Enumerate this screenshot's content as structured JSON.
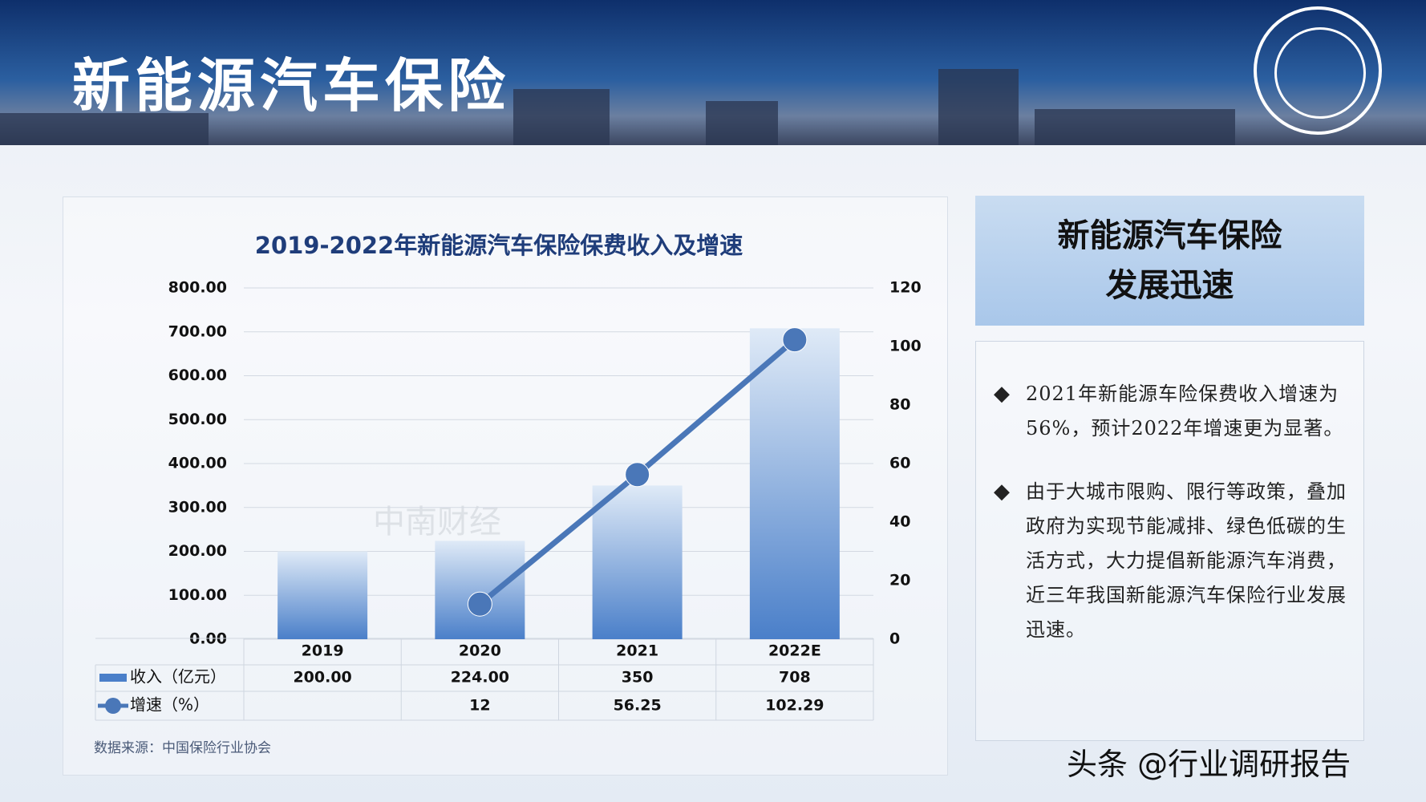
{
  "header": {
    "title": "新能源汽车保险"
  },
  "chart_data": {
    "type": "bar-line",
    "title": "2019-2022年新能源汽车保险保费收入及增速",
    "categories": [
      "2019",
      "2020",
      "2021",
      "2022E"
    ],
    "series": [
      {
        "name": "收入（亿元）",
        "type": "bar",
        "color": "#4a7fc9",
        "values": [
          200,
          224,
          350,
          708
        ],
        "value_labels": [
          "200.00",
          "224.00",
          "350",
          "708"
        ]
      },
      {
        "name": "增速（%）",
        "type": "line",
        "axis": "y2",
        "color": "#4a77b8",
        "values": [
          null,
          12,
          56.25,
          102.29
        ]
      }
    ],
    "ylim": [
      0,
      800
    ],
    "yticks": [
      {
        "value": 0,
        "label": "0.00"
      },
      {
        "value": 100,
        "label": "100.00"
      },
      {
        "value": 200,
        "label": "200.00"
      },
      {
        "value": 300,
        "label": "300.00"
      },
      {
        "value": 400,
        "label": "400.00"
      },
      {
        "value": 500,
        "label": "500.00"
      },
      {
        "value": 600,
        "label": "600.00"
      },
      {
        "value": 700,
        "label": "700.00"
      },
      {
        "value": 800,
        "label": "800.00"
      }
    ],
    "y2lim": [
      0,
      120
    ],
    "y2ticks": [
      0,
      20,
      40,
      60,
      80,
      100,
      120
    ],
    "grid": true,
    "watermark": "中南财经",
    "source": "数据来源：中国保险行业协会"
  },
  "side": {
    "title_lines": [
      "新能源汽车保险",
      "发展迅速"
    ],
    "bullets": [
      "2021年新能源车险保费收入增速为56%，预计2022年增速更为显著。",
      "由于大城市限购、限行等政策，叠加政府为实现节能减排、绿色低碳的生活方式，大力提倡新能源汽车消费，近三年我国新能源汽车保险行业发展迅速。"
    ]
  },
  "footer": {
    "credit": "头条 @行业调研报告"
  }
}
